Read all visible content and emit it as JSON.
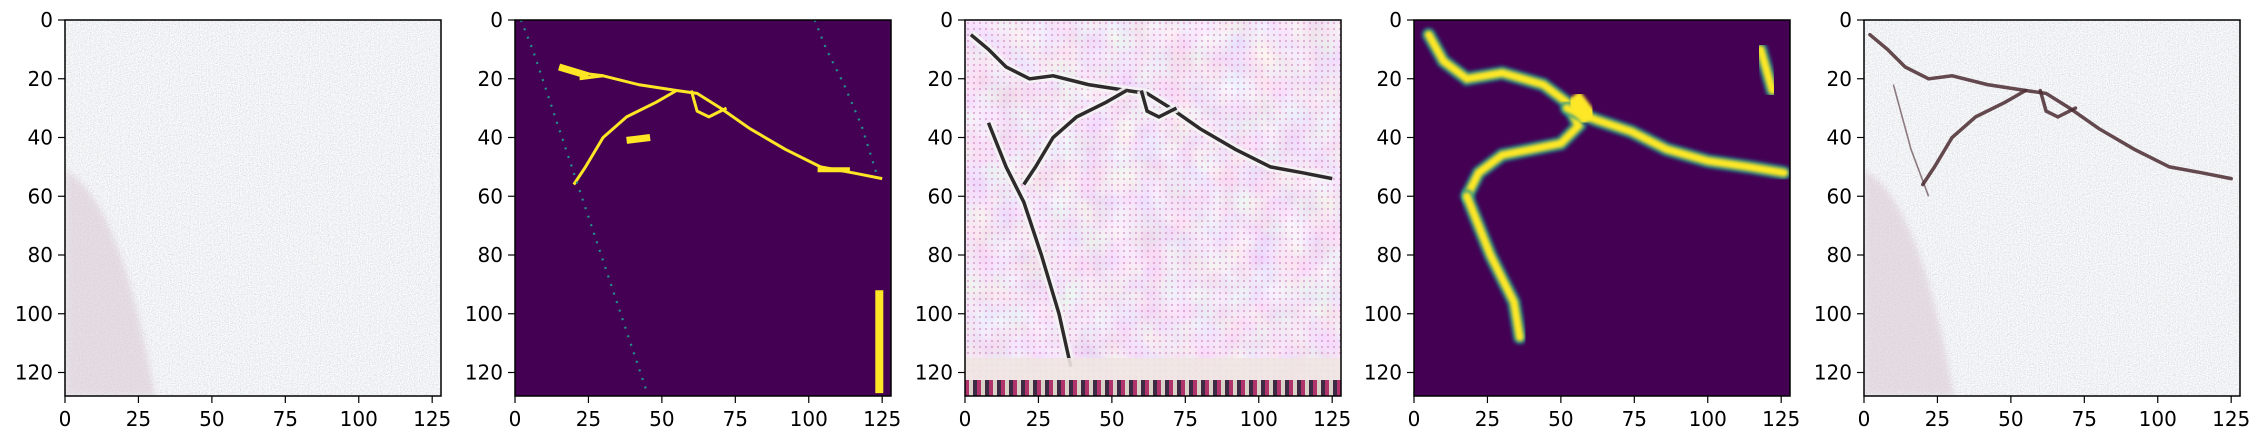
{
  "figure": {
    "panel_count": 5,
    "x_ticks": [
      "0",
      "25",
      "50",
      "75",
      "100",
      "125"
    ],
    "y_ticks": [
      "0",
      "20",
      "40",
      "60",
      "80",
      "100",
      "120"
    ],
    "x_tick_values": [
      0,
      25,
      50,
      75,
      100,
      125
    ],
    "y_tick_values": [
      0,
      20,
      40,
      60,
      80,
      100,
      120
    ],
    "image_extent": [
      0,
      128
    ],
    "colors": {
      "viridis_low": "#440154",
      "viridis_mid": "#21918c",
      "viridis_high": "#fde725",
      "gray_bg": "#b7b8bb",
      "pink_tint": "#d9c9d3",
      "crack_dark": "#4a2a30"
    }
  },
  "panels": [
    {
      "kind": "input-photo",
      "icon": "gray-concrete-texture"
    },
    {
      "kind": "ground-truth-mask",
      "icon": "viridis-binary-mask"
    },
    {
      "kind": "feature-map",
      "icon": "pink-edge-texture"
    },
    {
      "kind": "predicted-mask",
      "icon": "viridis-soft-mask"
    },
    {
      "kind": "overlay",
      "icon": "gray-texture-with-crack"
    }
  ]
}
